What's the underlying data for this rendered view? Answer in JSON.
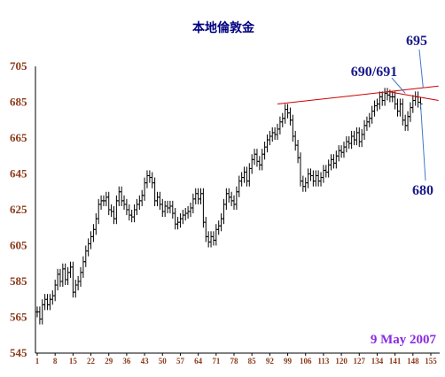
{
  "chart_data": {
    "type": "ohlc-bar",
    "title": "本地倫敦金",
    "date_label": "9 May 2007",
    "ylim": [
      545,
      705
    ],
    "y_ticks": [
      "705",
      "685",
      "665",
      "645",
      "625",
      "605",
      "585",
      "565",
      "545"
    ],
    "x_ticks": [
      "1",
      "8",
      "15",
      "22",
      "29",
      "36",
      "43",
      "50",
      "57",
      "64",
      "71",
      "78",
      "85",
      "92",
      "99",
      "106",
      "113",
      "120",
      "127",
      "134",
      "141",
      "148",
      "155"
    ],
    "x_range": [
      1,
      155
    ],
    "grid": false,
    "annotations": [
      {
        "label": "695",
        "target_bar": 152,
        "target_price": 693
      },
      {
        "label": "690/691",
        "target_bar": 145,
        "target_price": 690
      },
      {
        "label": "680",
        "target_bar": 151,
        "target_price": 684
      }
    ],
    "trendlines": [
      {
        "from_bar": 95,
        "from_price": 684,
        "to_bar": 158,
        "to_price": 694
      },
      {
        "from_bar": 138,
        "from_price": 691,
        "to_bar": 158,
        "to_price": 686
      }
    ],
    "colors": {
      "bars": "#000000",
      "trendline": "#cc0000",
      "leader": "#4477cc",
      "title": "#000080",
      "ticks": "#8B3A1A",
      "date": "#8a2be2"
    },
    "close_values": [
      568,
      564,
      572,
      575,
      572,
      575,
      577,
      583,
      589,
      585,
      592,
      586,
      590,
      593,
      579,
      583,
      585,
      590,
      596,
      602,
      606,
      610,
      614,
      620,
      628,
      630,
      630,
      632,
      625,
      624,
      620,
      630,
      635,
      630,
      628,
      625,
      622,
      621,
      625,
      628,
      630,
      633,
      640,
      644,
      643,
      640,
      630,
      632,
      628,
      624,
      627,
      626,
      627,
      623,
      617,
      618,
      620,
      622,
      623,
      624,
      626,
      631,
      634,
      631,
      634,
      618,
      610,
      607,
      610,
      608,
      614,
      616,
      620,
      628,
      634,
      632,
      630,
      628,
      635,
      641,
      643,
      646,
      641,
      648,
      653,
      656,
      652,
      650,
      656,
      660,
      664,
      666,
      668,
      667,
      670,
      674,
      676,
      681,
      679,
      675,
      666,
      661,
      654,
      641,
      638,
      640,
      645,
      644,
      641,
      644,
      641,
      643,
      647,
      646,
      650,
      653,
      651,
      655,
      658,
      657,
      660,
      663,
      662,
      666,
      664,
      668,
      663,
      667,
      672,
      674,
      676,
      680,
      683,
      684,
      688,
      686,
      690,
      689,
      688,
      688,
      684,
      680,
      684,
      675,
      672,
      677,
      682,
      686,
      688,
      685,
      684
    ]
  }
}
